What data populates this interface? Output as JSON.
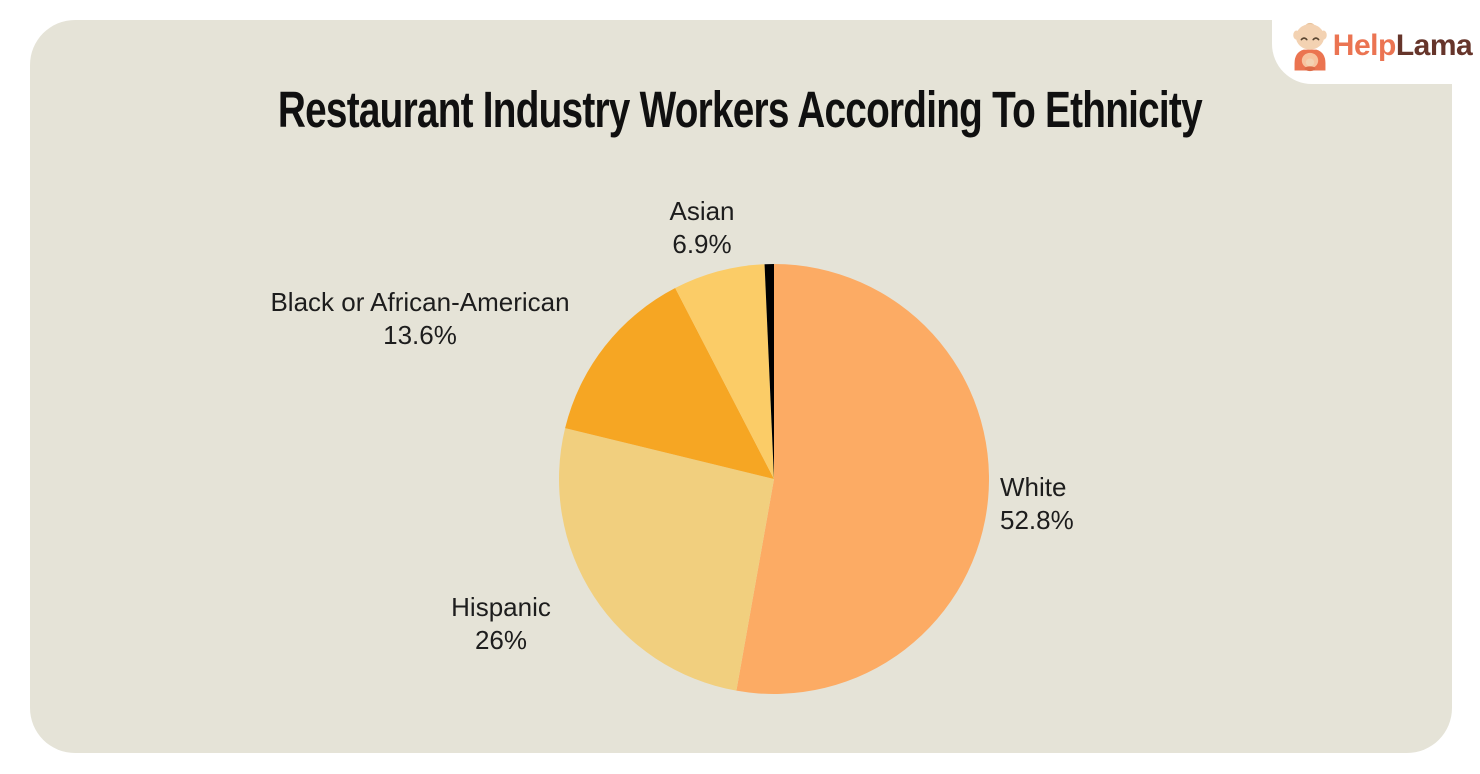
{
  "page": {
    "background_color": "#FFFFFF",
    "card_background_color": "#E5E3D7"
  },
  "logo": {
    "text_primary": "Help",
    "text_secondary": "Lama",
    "primary_color": "#EB7452",
    "secondary_color": "#66352B",
    "mascot": "llama-monk-mascot",
    "container_color": "#FFFFFF"
  },
  "chart_data": {
    "type": "pie",
    "title": "Restaurant Industry Workers According To Ethnicity",
    "legend_position": "none",
    "label_style": "outside",
    "start_angle_deg": 0,
    "direction": "clockwise",
    "segments": [
      {
        "label": "White",
        "value": 52.8,
        "display_value": "52.8%",
        "color": "#FCAB64"
      },
      {
        "label": "Hispanic",
        "value": 26,
        "display_value": "26%",
        "color": "#F1CF7E"
      },
      {
        "label": "Black or African-American",
        "value": 13.6,
        "display_value": "13.6%",
        "color": "#F6A623"
      },
      {
        "label": "Asian",
        "value": 6.9,
        "display_value": "6.9%",
        "color": "#FBCC67"
      },
      {
        "label": "",
        "value": 0.7,
        "display_value": "",
        "color": "#000000",
        "unlabeled": true
      }
    ]
  }
}
